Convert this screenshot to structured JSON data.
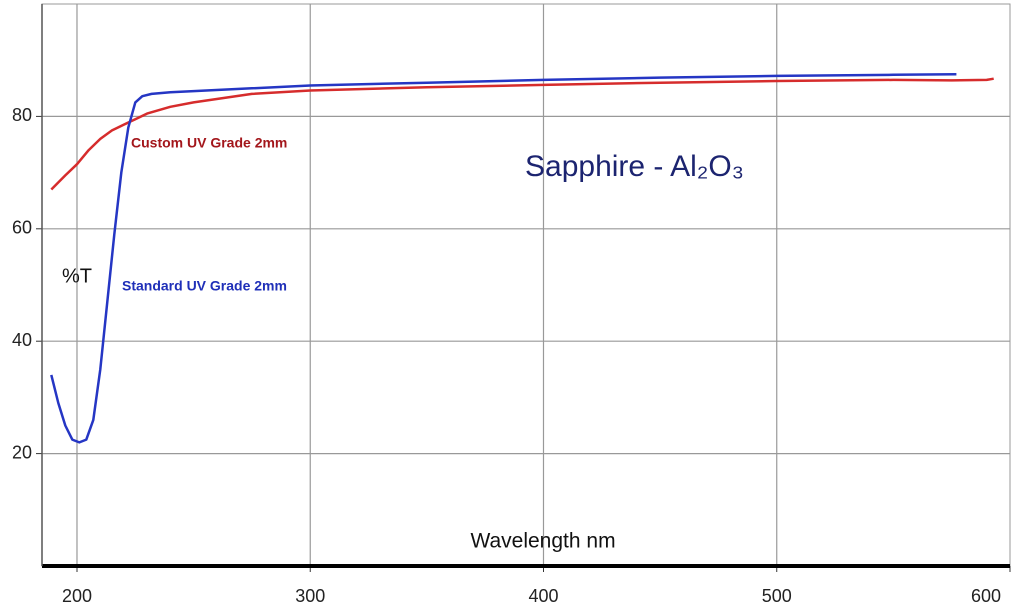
{
  "chart_data": {
    "type": "line",
    "title": "Sapphire - Al₂O₃",
    "x_label": "Wavelength nm",
    "y_label": "%T",
    "xlim": [
      185,
      600
    ],
    "ylim": [
      0,
      100
    ],
    "xticks": [
      200,
      300,
      400,
      500,
      600
    ],
    "yticks": [
      20,
      40,
      60,
      80
    ],
    "grid": true,
    "series": [
      {
        "name": "Custom UV Grade 2mm",
        "color": "#d62c2c",
        "label_color": "#a3161b",
        "x": [
          189,
          195,
          200,
          205,
          210,
          215,
          220,
          225,
          230,
          240,
          250,
          275,
          300,
          350,
          400,
          450,
          500,
          550,
          575,
          590,
          593
        ],
        "values": [
          67,
          69.5,
          71.5,
          74,
          76,
          77.5,
          78.5,
          79.5,
          80.5,
          81.7,
          82.5,
          84,
          84.6,
          85.2,
          85.6,
          86,
          86.3,
          86.5,
          86.4,
          86.5,
          86.7
        ]
      },
      {
        "name": "Standard UV Grade 2mm",
        "color": "#2536c4",
        "label_color": "#1f2fb8",
        "x": [
          189,
          192,
          195,
          198,
          201,
          204,
          207,
          210,
          213,
          216,
          219,
          222,
          225,
          228,
          232,
          240,
          250,
          275,
          300,
          350,
          400,
          450,
          500,
          550,
          577
        ],
        "values": [
          34,
          29,
          25,
          22.5,
          22,
          22.5,
          26,
          35,
          47,
          59,
          70,
          78,
          82.5,
          83.6,
          84,
          84.3,
          84.5,
          85,
          85.5,
          86,
          86.5,
          86.9,
          87.2,
          87.4,
          87.5
        ]
      }
    ]
  }
}
